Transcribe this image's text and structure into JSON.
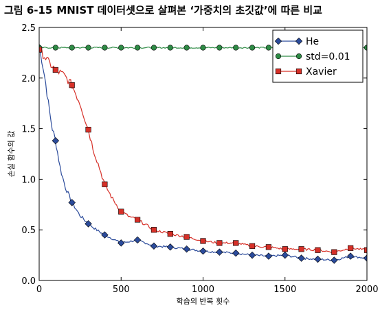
{
  "figure": {
    "number": "그림 6-15",
    "caption": "MNIST 데이터셋으로 살펴본 ‘가중치의 초깃값’에 따른 비교"
  },
  "chart_data": {
    "type": "line",
    "xlabel": "학습의 반복 횟수",
    "ylabel": "손실 함수의 값",
    "xlim": [
      0,
      2000
    ],
    "ylim": [
      0,
      2.5
    ],
    "xticks": [
      0,
      500,
      1000,
      1500,
      2000
    ],
    "yticks": [
      0.0,
      0.5,
      1.0,
      1.5,
      2.0,
      2.5
    ],
    "xtick_labels": [
      "0",
      "500",
      "1000",
      "1500",
      "2000"
    ],
    "ytick_labels": [
      "0.0",
      "0.5",
      "1.0",
      "1.5",
      "2.0",
      "2.5"
    ],
    "legend_position": "top-right",
    "grid": false,
    "marker_every": 100,
    "series": [
      {
        "name": "He",
        "color": "#2b4b9b",
        "marker": "diamond",
        "x": [
          0,
          20,
          40,
          60,
          80,
          100,
          130,
          160,
          200,
          250,
          300,
          350,
          400,
          450,
          500,
          600,
          700,
          800,
          900,
          1000,
          1100,
          1200,
          1300,
          1400,
          1500,
          1600,
          1700,
          1800,
          1900,
          2000
        ],
        "y": [
          2.3,
          2.15,
          1.95,
          1.7,
          1.5,
          1.38,
          1.1,
          0.92,
          0.77,
          0.64,
          0.56,
          0.5,
          0.45,
          0.41,
          0.37,
          0.4,
          0.34,
          0.33,
          0.31,
          0.29,
          0.28,
          0.27,
          0.25,
          0.24,
          0.25,
          0.22,
          0.21,
          0.2,
          0.24,
          0.22
        ]
      },
      {
        "name": "std=0.01",
        "color": "#2e8b45",
        "marker": "circle",
        "x": [
          0,
          100,
          200,
          300,
          400,
          500,
          600,
          700,
          800,
          900,
          1000,
          1100,
          1200,
          1300,
          1400,
          1500,
          1600,
          1700,
          1800,
          1900,
          2000
        ],
        "y": [
          2.3,
          2.3,
          2.3,
          2.3,
          2.3,
          2.3,
          2.3,
          2.3,
          2.3,
          2.3,
          2.3,
          2.3,
          2.3,
          2.3,
          2.3,
          2.3,
          2.3,
          2.3,
          2.3,
          2.3,
          2.3
        ]
      },
      {
        "name": "Xavier",
        "color": "#d63028",
        "marker": "square",
        "x": [
          0,
          30,
          60,
          100,
          150,
          200,
          250,
          300,
          330,
          370,
          400,
          450,
          500,
          550,
          600,
          700,
          800,
          900,
          1000,
          1100,
          1200,
          1300,
          1400,
          1500,
          1600,
          1700,
          1800,
          1900,
          2000
        ],
        "y": [
          2.28,
          2.22,
          2.15,
          2.08,
          2.03,
          1.93,
          1.75,
          1.49,
          1.3,
          1.1,
          0.95,
          0.8,
          0.68,
          0.63,
          0.6,
          0.5,
          0.46,
          0.43,
          0.39,
          0.37,
          0.37,
          0.34,
          0.33,
          0.31,
          0.31,
          0.3,
          0.28,
          0.32,
          0.3
        ]
      }
    ]
  }
}
